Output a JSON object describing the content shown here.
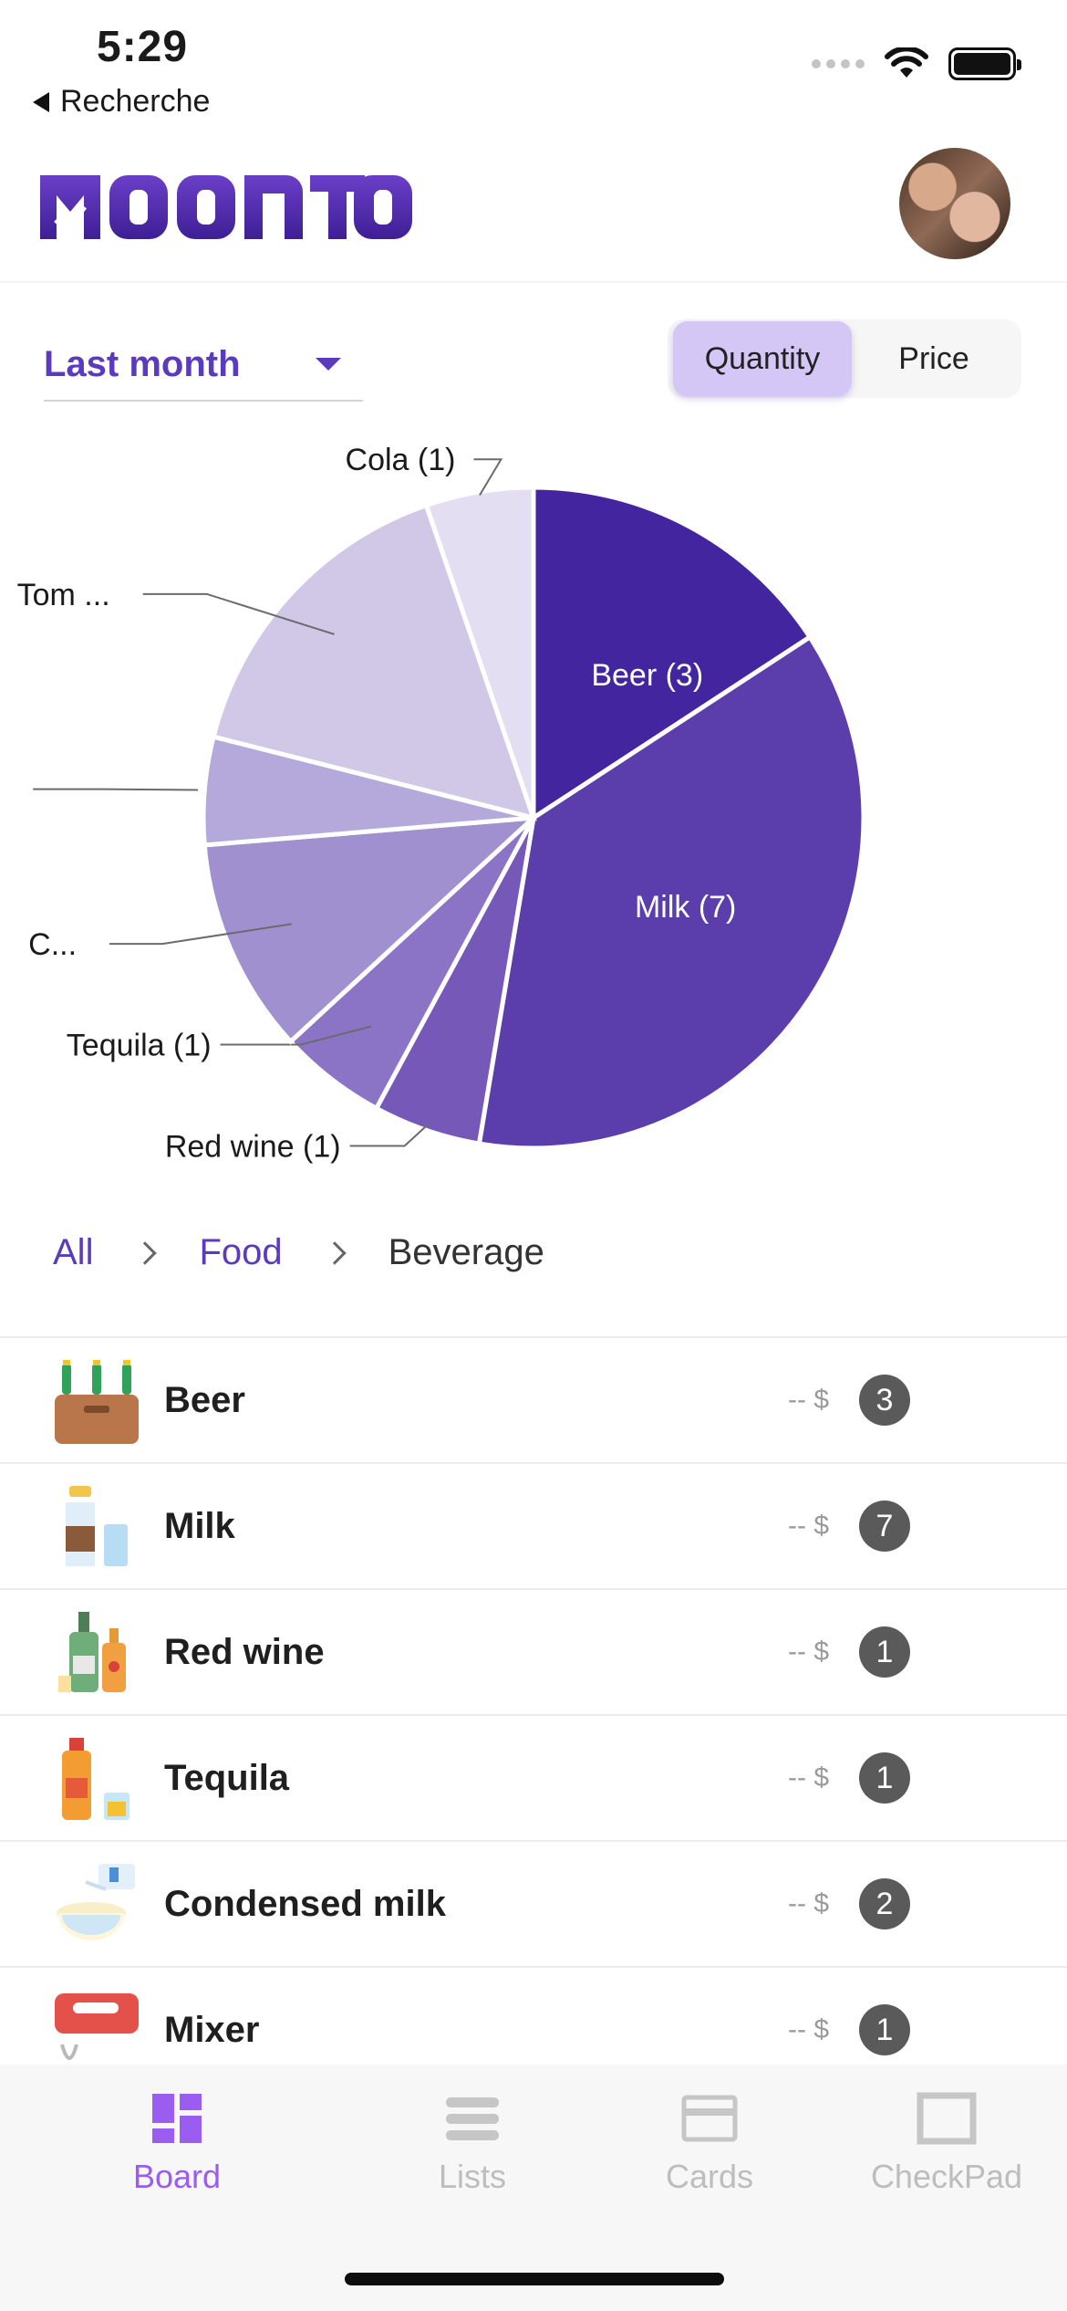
{
  "status": {
    "time": "5:29",
    "back_label": "Recherche"
  },
  "header": {
    "logo_text": "MOONTO",
    "avatar": "user-avatar"
  },
  "filters": {
    "period": "Last month",
    "segments": [
      {
        "label": "Quantity",
        "active": true
      },
      {
        "label": "Price",
        "active": false
      }
    ]
  },
  "chart_data": {
    "type": "pie",
    "slices": [
      {
        "label": "Beer (3)",
        "value": 3,
        "color": "#4325a0"
      },
      {
        "label": "Milk (7)",
        "value": 7,
        "color": "#5b3eab"
      },
      {
        "label": "Red wine (1)",
        "value": 1,
        "color": "#7658b8"
      },
      {
        "label": "Tequila (1)",
        "value": 1,
        "color": "#8b73c6"
      },
      {
        "label": "C...",
        "value": 2,
        "color": "#a190d0"
      },
      {
        "label": "",
        "value": 1,
        "color": "#b5a8da"
      },
      {
        "label": "Tom ...",
        "value": 3,
        "color": "#d1c8e8"
      },
      {
        "label": "Cola (1)",
        "value": 1,
        "color": "#e3def2"
      }
    ]
  },
  "breadcrumb": {
    "all": "All",
    "food": "Food",
    "current": "Beverage"
  },
  "items": [
    {
      "name": "Beer",
      "price": "-- $",
      "count": "3",
      "icon": "beer-crate-icon"
    },
    {
      "name": "Milk",
      "price": "-- $",
      "count": "7",
      "icon": "milk-bottle-icon"
    },
    {
      "name": "Red wine",
      "price": "-- $",
      "count": "1",
      "icon": "wine-bottles-icon"
    },
    {
      "name": "Tequila",
      "price": "-- $",
      "count": "1",
      "icon": "tequila-bottle-icon"
    },
    {
      "name": "Condensed milk",
      "price": "-- $",
      "count": "2",
      "icon": "condensed-milk-icon"
    },
    {
      "name": "Mixer",
      "price": "-- $",
      "count": "1",
      "icon": "hand-mixer-icon"
    }
  ],
  "tabs": [
    {
      "label": "Board",
      "active": true
    },
    {
      "label": "Lists",
      "active": false
    },
    {
      "label": "Cards",
      "active": false
    },
    {
      "label": "CheckPad",
      "active": false
    }
  ]
}
